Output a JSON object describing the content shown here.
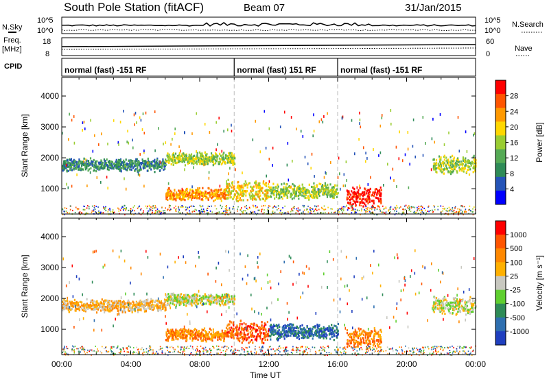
{
  "header": {
    "title": "South Pole Station (fitACF)",
    "beam": "Beam 07",
    "date": "31/Jan/2015"
  },
  "strip": {
    "nsky_label": "N.Sky",
    "nsearch_label": "N.Search",
    "freq_label_1": "Freq.",
    "freq_label_2": "[MHz]",
    "nave_label": "Nave",
    "cpid_label": "CPID",
    "count_ticks": [
      "10^5",
      "10^0"
    ],
    "freq_ticks": [
      "18",
      "8"
    ],
    "nave_ticks": [
      "60",
      "0"
    ]
  },
  "cpid_segments": [
    {
      "label": "normal (fast) -151 RF",
      "start_hour": 0
    },
    {
      "label": "normal (fast) 151 RF",
      "start_hour": 10
    },
    {
      "label": "normal (fast) -151 RF",
      "start_hour": 16
    }
  ],
  "chart_data": [
    {
      "type": "heatmap",
      "name": "power",
      "ylabel": "Slant Range [km]",
      "xlabel": "Time UT",
      "xlim": [
        0,
        24
      ],
      "ylim": [
        180,
        4600
      ],
      "y_ticks": [
        1000,
        2000,
        3000,
        4000
      ],
      "colorbar_label": "Power [dB]",
      "colorbar_ticks": [
        "28",
        "24",
        "20",
        "16",
        "12",
        "8",
        "4"
      ],
      "colorbar_range": [
        0,
        30
      ],
      "colors": [
        "#0000ff",
        "#2554b8",
        "#2e8b57",
        "#55aa55",
        "#9acd32",
        "#ffd700",
        "#ff9900",
        "#ff5500",
        "#ff0000"
      ],
      "features": [
        {
          "t": [
            0,
            6
          ],
          "r": [
            1700,
            1900
          ],
          "level": 2
        },
        {
          "t": [
            6,
            10
          ],
          "r": [
            1900,
            2100
          ],
          "level": 4
        },
        {
          "t": [
            6,
            9.5
          ],
          "r": [
            750,
            950
          ],
          "level": 6
        },
        {
          "t": [
            9.5,
            12
          ],
          "r": [
            700,
            1200
          ],
          "level": 5
        },
        {
          "t": [
            12,
            16
          ],
          "r": [
            800,
            1100
          ],
          "level": 4
        },
        {
          "t": [
            16.5,
            18.5
          ],
          "r": [
            500,
            1000
          ],
          "level": 8
        },
        {
          "t": [
            21.5,
            24
          ],
          "r": [
            1600,
            2000
          ],
          "level": 4
        }
      ]
    },
    {
      "type": "heatmap",
      "name": "velocity",
      "ylabel": "Slant Range [km]",
      "xlabel": "Time UT",
      "xlim": [
        0,
        24
      ],
      "ylim": [
        180,
        4600
      ],
      "y_ticks": [
        1000,
        2000,
        3000,
        4000
      ],
      "colorbar_label": "Velocity [m s⁻¹]",
      "colorbar_ticks": [
        "1000",
        "500",
        "100",
        "25",
        "-25",
        "-100",
        "-500",
        "-1000"
      ],
      "colors": [
        "#1f3fbf",
        "#2e6fb0",
        "#2e8b57",
        "#5fcf2f",
        "#c8c8c0",
        "#ffb000",
        "#ff8800",
        "#ff5500",
        "#ff0000"
      ],
      "features": [
        {
          "t": [
            0,
            6
          ],
          "r": [
            1700,
            1900
          ],
          "level": 5
        },
        {
          "t": [
            6,
            10
          ],
          "r": [
            1900,
            2100
          ],
          "level": 4
        },
        {
          "t": [
            6,
            9.5
          ],
          "r": [
            750,
            950
          ],
          "level": 6
        },
        {
          "t": [
            9.5,
            12
          ],
          "r": [
            700,
            1200
          ],
          "level": 7
        },
        {
          "t": [
            12,
            16
          ],
          "r": [
            800,
            1100
          ],
          "level": 1
        },
        {
          "t": [
            16.5,
            18.5
          ],
          "r": [
            500,
            1000
          ],
          "level": 6
        },
        {
          "t": [
            21.5,
            24
          ],
          "r": [
            1600,
            2000
          ],
          "level": 4
        }
      ]
    }
  ],
  "x_ticks": [
    "00:00",
    "04:00",
    "08:00",
    "12:00",
    "16:00",
    "20:00",
    "00:00"
  ],
  "xlabel": "Time UT"
}
